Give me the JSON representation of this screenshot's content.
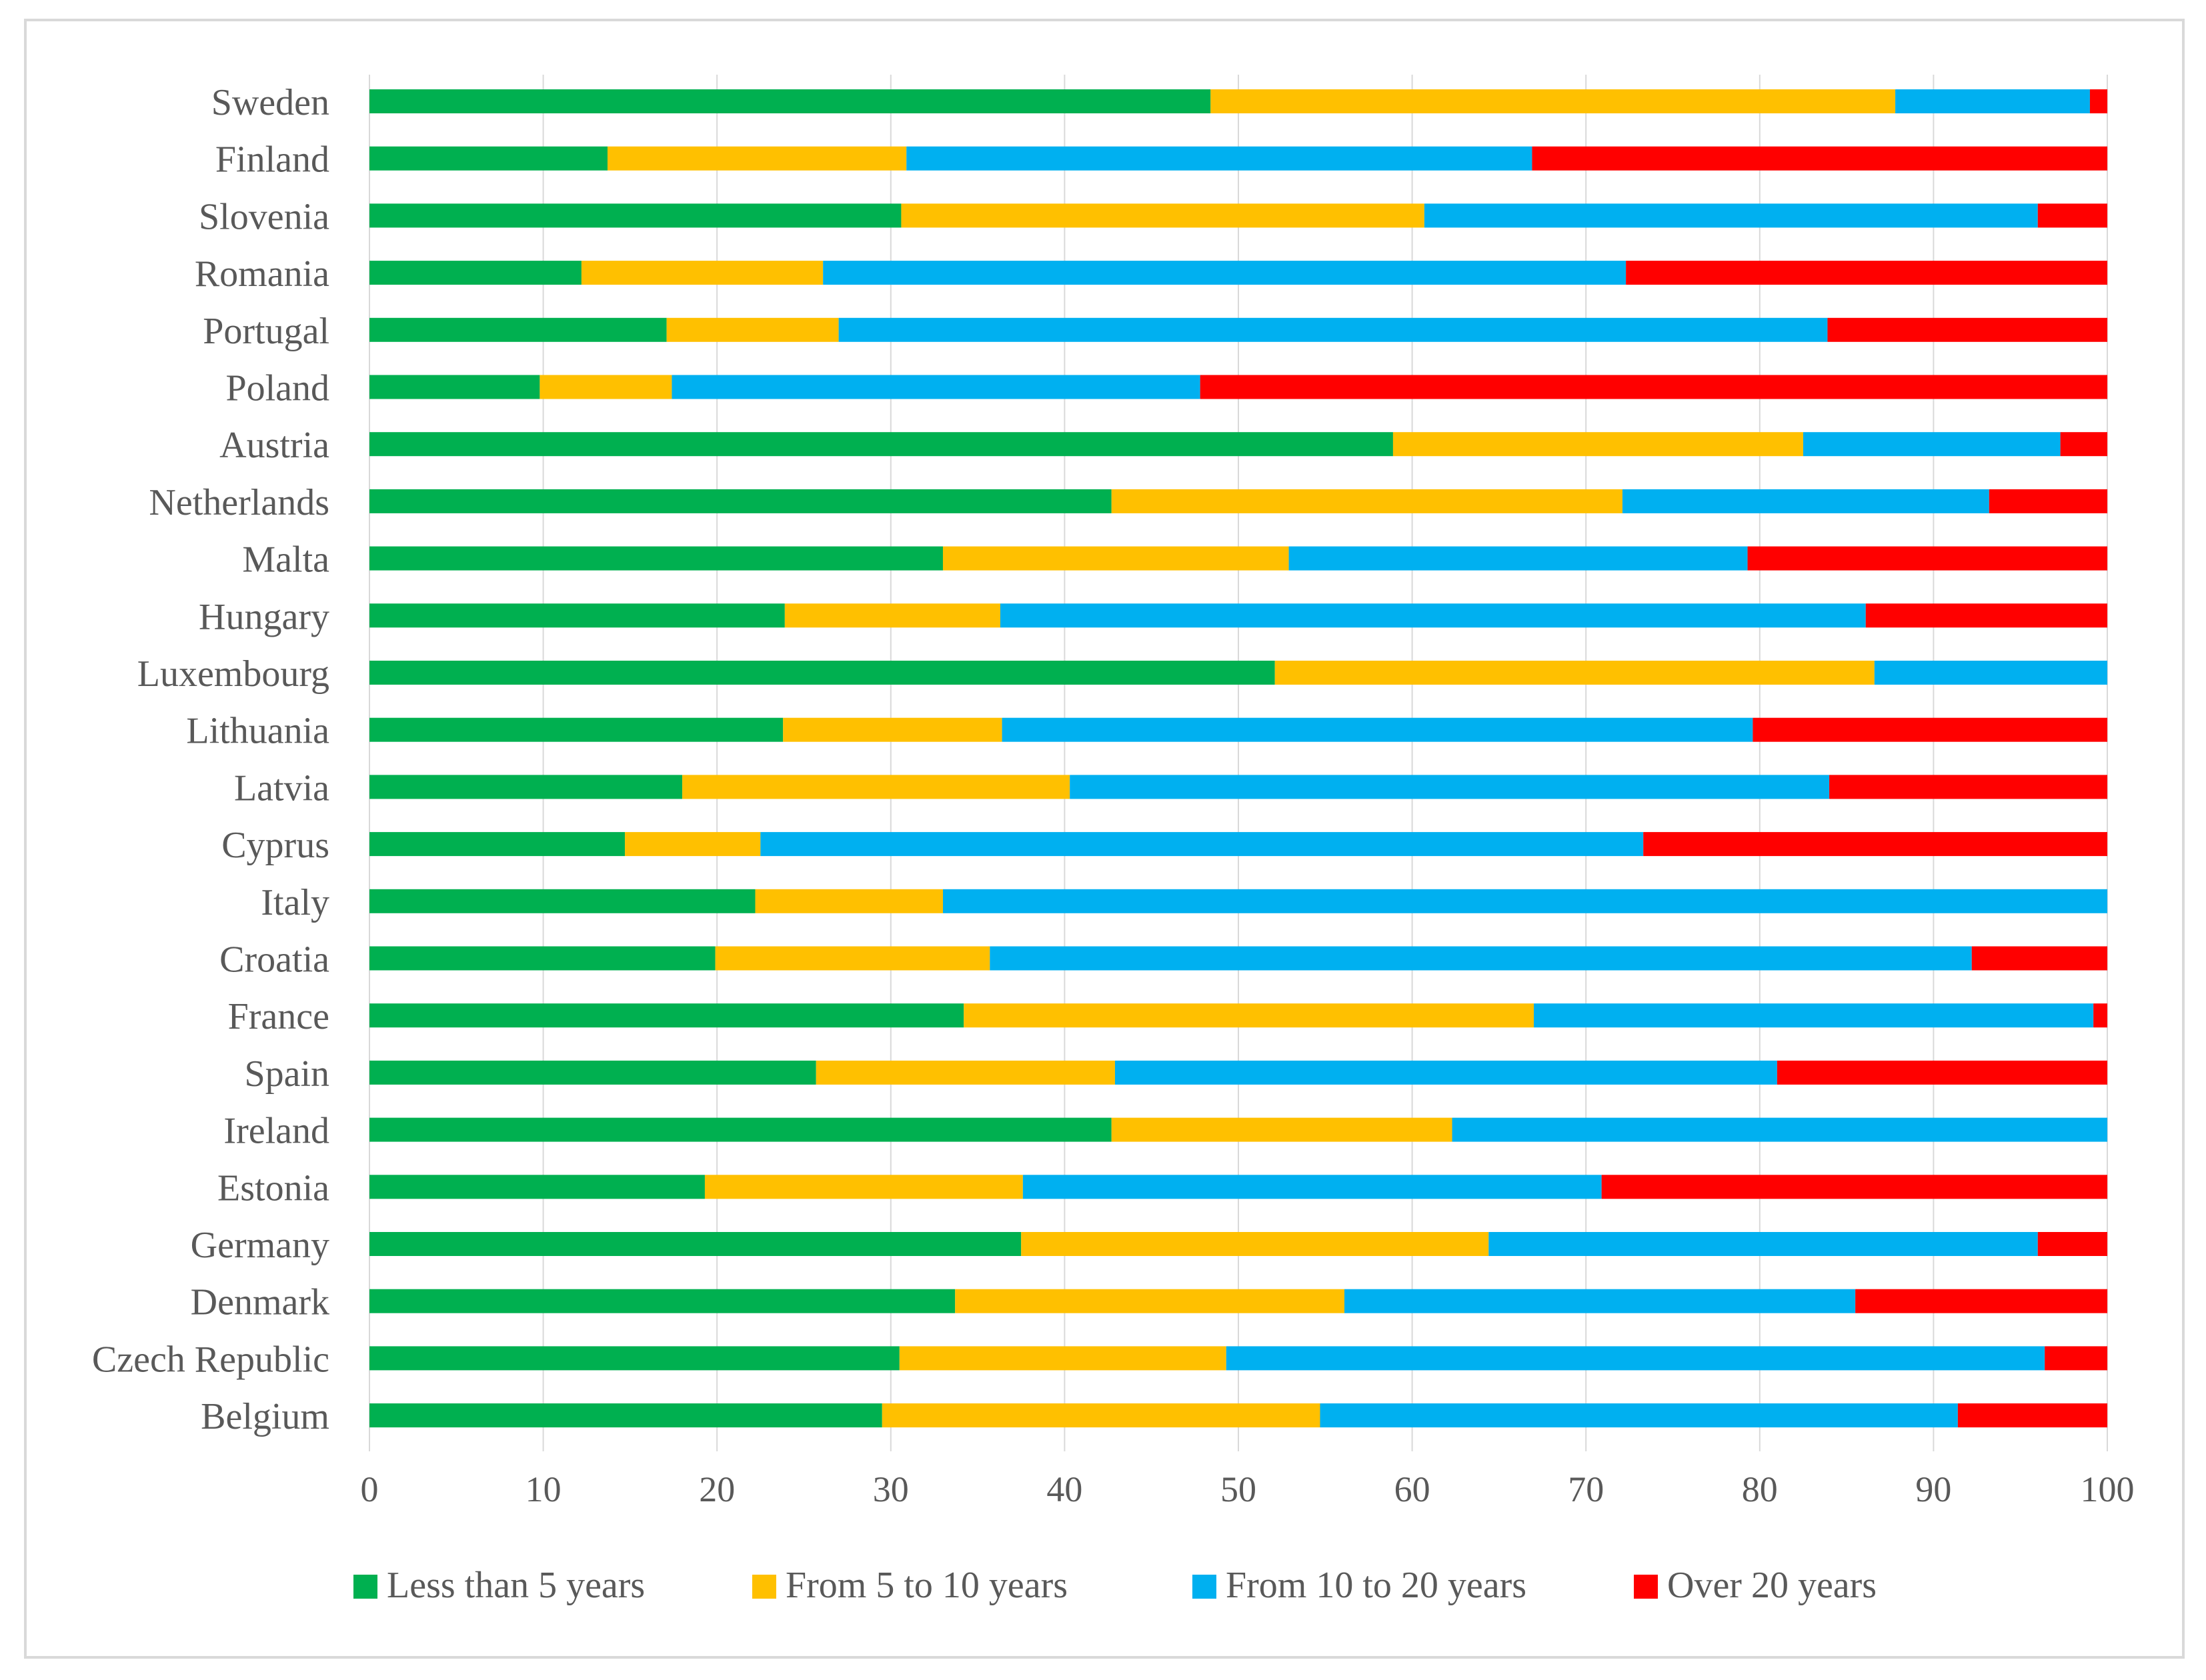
{
  "chart_data": {
    "type": "bar",
    "orientation": "horizontal",
    "stacked": true,
    "title": "",
    "xlabel": "",
    "ylabel": "",
    "xlim": [
      0,
      100
    ],
    "xticks": [
      0,
      10,
      20,
      30,
      40,
      50,
      60,
      70,
      80,
      90,
      100
    ],
    "grid": true,
    "legend_position": "bottom",
    "categories": [
      "Sweden",
      "Finland",
      "Slovenia",
      "Romania",
      "Portugal",
      "Poland",
      "Austria",
      "Netherlands",
      "Malta",
      "Hungary",
      "Luxembourg",
      "Lithuania",
      "Latvia",
      "Cyprus",
      "Italy",
      "Croatia",
      "France",
      "Spain",
      "Ireland",
      "Estonia",
      "Germany",
      "Denmark",
      "Czech Republic",
      "Belgium"
    ],
    "series": [
      {
        "name": "Less than 5 years",
        "color": "#00b050",
        "values": [
          48.4,
          13.7,
          30.6,
          12.2,
          17.1,
          9.8,
          58.9,
          42.7,
          33.0,
          23.9,
          52.1,
          23.8,
          18.0,
          14.7,
          22.2,
          19.9,
          34.2,
          25.7,
          42.7,
          19.3,
          37.5,
          33.7,
          30.5,
          29.5
        ]
      },
      {
        "name": "From 5 to 10 years",
        "color": "#ffc000",
        "values": [
          39.4,
          17.2,
          30.1,
          13.9,
          9.9,
          7.6,
          23.6,
          29.4,
          19.9,
          12.4,
          34.5,
          12.6,
          22.3,
          7.8,
          10.8,
          15.8,
          32.8,
          17.2,
          19.6,
          18.3,
          26.9,
          22.4,
          18.8,
          25.2
        ]
      },
      {
        "name": "From 10 to 20 years",
        "color": "#00b0f0",
        "values": [
          11.2,
          36.0,
          35.3,
          46.2,
          56.9,
          30.4,
          14.8,
          21.1,
          26.4,
          49.8,
          13.4,
          43.2,
          43.7,
          50.8,
          67.0,
          56.5,
          32.2,
          38.1,
          37.7,
          33.3,
          31.6,
          29.4,
          47.1,
          36.7
        ]
      },
      {
        "name": "Over 20 years",
        "color": "#ff0000",
        "values": [
          1.0,
          33.1,
          4.0,
          27.7,
          16.1,
          52.2,
          2.7,
          6.8,
          20.7,
          13.9,
          0.0,
          20.4,
          16.0,
          26.7,
          0.0,
          7.8,
          0.8,
          19.0,
          0.0,
          29.1,
          4.0,
          14.5,
          3.6,
          8.6
        ]
      }
    ]
  }
}
